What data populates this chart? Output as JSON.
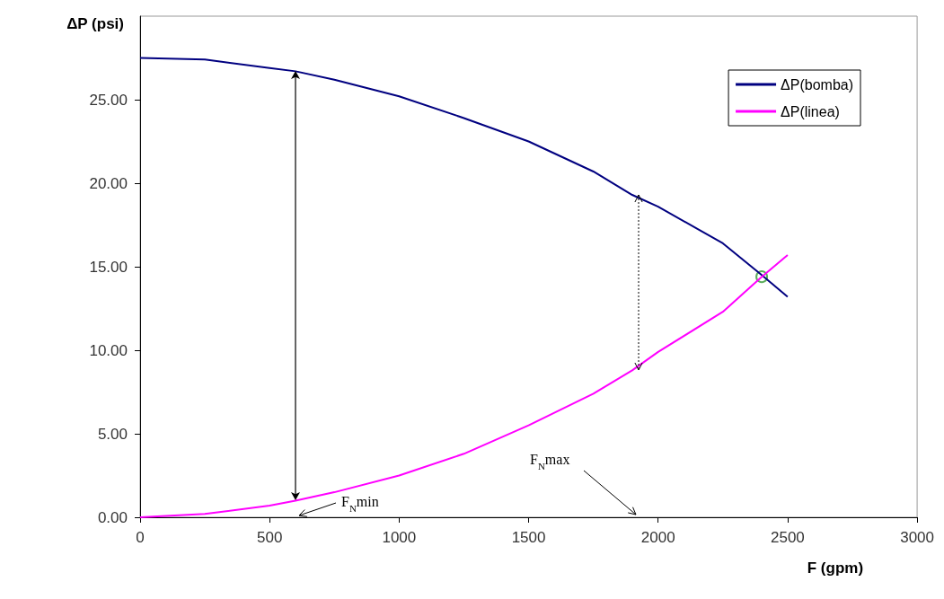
{
  "chart_data": {
    "type": "line",
    "xlabel": "F (gpm)",
    "ylabel": "ΔP (psi)",
    "xlim": [
      0,
      3000
    ],
    "xticks": [
      0,
      500,
      1000,
      1500,
      2000,
      2500,
      3000
    ],
    "ylim": [
      0,
      30
    ],
    "yticks": [
      {
        "value": 0,
        "label": "0.00"
      },
      {
        "value": 5,
        "label": "5.00"
      },
      {
        "value": 10,
        "label": "10.00"
      },
      {
        "value": 15,
        "label": "15.00"
      },
      {
        "value": 20,
        "label": "20.00"
      },
      {
        "value": 25,
        "label": "25.00"
      }
    ],
    "x": [
      0,
      250,
      500,
      600,
      750,
      1000,
      1250,
      1500,
      1750,
      1900,
      2000,
      2250,
      2400,
      2500
    ],
    "series": [
      {
        "name": "ΔP(bomba)",
        "color": "#000080",
        "values": [
          27.5,
          27.4,
          26.9,
          26.7,
          26.2,
          25.2,
          23.9,
          22.5,
          20.7,
          19.3,
          18.6,
          16.4,
          14.5,
          13.2
        ]
      },
      {
        "name": "ΔP(linea)",
        "color": "#ff00ff",
        "values": [
          0,
          0.2,
          0.7,
          1.0,
          1.5,
          2.5,
          3.8,
          5.5,
          7.4,
          8.8,
          9.9,
          12.3,
          14.4,
          15.7
        ]
      },
      {
        "type": "scatter",
        "color": "#339933",
        "x": [
          2400
        ],
        "values": [
          14.4
        ],
        "marker": "circle"
      }
    ],
    "annotations": [
      "F$_{N}$min",
      "F$_{N}$max"
    ],
    "legend": "top right",
    "grid": false,
    "marker": "none",
    "line_style": "solid"
  }
}
